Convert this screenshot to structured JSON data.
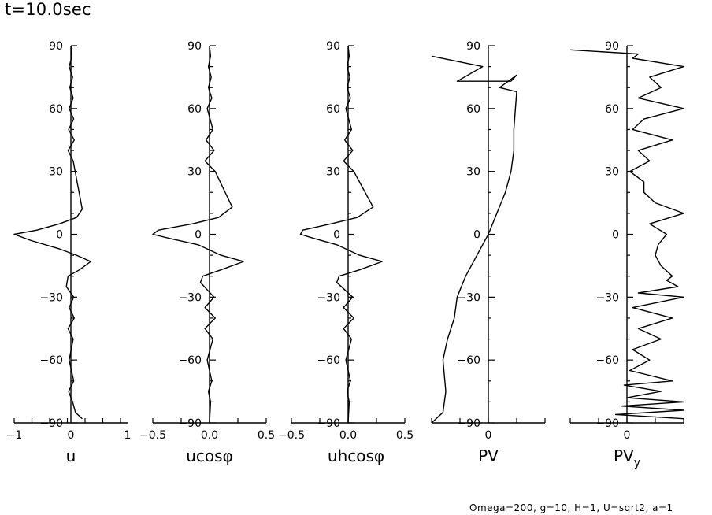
{
  "header": {
    "time": "t=10.0sec"
  },
  "footer": {
    "params": "Omega=200, g=10, H=1, U=sqrt2, a=1"
  },
  "chart_data": [
    {
      "type": "line",
      "xlabel": "u",
      "xlim": [
        -1,
        1
      ],
      "xticks": [
        "−1",
        "0",
        "1"
      ],
      "ylim": [
        -90,
        90
      ],
      "yticks": [
        "−90",
        "−60",
        "−30",
        "0",
        "30",
        "60",
        "90"
      ],
      "series": [
        {
          "x": [
            0.0,
            0.02,
            -0.03,
            0.03,
            -0.02,
            0.04,
            -0.03,
            0.05,
            -0.04,
            0.06,
            -0.05,
            0.04,
            0.2,
            0.1,
            -0.2,
            -0.6,
            -1.0,
            -0.7,
            -0.2,
            0.1,
            0.35,
            0.15,
            -0.05,
            -0.08,
            0.05,
            -0.03,
            0.06,
            -0.05,
            0.04,
            -0.03,
            0.05,
            -0.04,
            0.03,
            0.08,
            0.2
          ],
          "y": [
            90,
            85,
            80,
            75,
            70,
            65,
            60,
            55,
            50,
            45,
            40,
            35,
            12,
            8,
            5,
            2,
            0,
            -3,
            -7,
            -10,
            -13,
            -17,
            -20,
            -25,
            -30,
            -35,
            -40,
            -45,
            -50,
            -60,
            -70,
            -75,
            -80,
            -85,
            -88
          ]
        }
      ]
    },
    {
      "type": "line",
      "xlabel": "ucosφ",
      "xlim": [
        -0.5,
        0.5
      ],
      "xticks": [
        "−0.5",
        "0.0",
        "0.5"
      ],
      "ylim": [
        -90,
        90
      ],
      "yticks": [
        "−90",
        "−60",
        "−30",
        "0",
        "30",
        "60",
        "90"
      ],
      "series": [
        {
          "x": [
            0.0,
            0.01,
            -0.01,
            0.015,
            -0.01,
            0.02,
            -0.02,
            0.03,
            -0.03,
            0.04,
            -0.04,
            0.05,
            0.2,
            0.08,
            -0.15,
            -0.45,
            -0.5,
            -0.35,
            -0.1,
            0.1,
            0.3,
            0.1,
            -0.06,
            -0.08,
            0.04,
            -0.04,
            0.05,
            -0.04,
            0.03,
            -0.02,
            0.02,
            -0.01,
            0.01,
            0.0
          ],
          "y": [
            90,
            85,
            80,
            75,
            70,
            65,
            60,
            50,
            45,
            40,
            35,
            30,
            13,
            8,
            5,
            2,
            0,
            -2,
            -5,
            -10,
            -13,
            -17,
            -20,
            -23,
            -30,
            -35,
            -40,
            -45,
            -50,
            -60,
            -70,
            -75,
            -80,
            -90
          ]
        }
      ]
    },
    {
      "type": "line",
      "xlabel": "uhcosφ",
      "xlim": [
        -0.5,
        0.5
      ],
      "xticks": [
        "−0.5",
        "0.0",
        "0.5"
      ],
      "ylim": [
        -90,
        90
      ],
      "yticks": [
        "−90",
        "−60",
        "−30",
        "0",
        "30",
        "60",
        "90"
      ],
      "series": [
        {
          "x": [
            0.0,
            0.01,
            -0.01,
            0.015,
            -0.01,
            0.02,
            -0.02,
            0.03,
            -0.03,
            0.04,
            -0.04,
            0.05,
            0.22,
            0.08,
            -0.15,
            -0.4,
            -0.42,
            -0.3,
            -0.1,
            0.1,
            0.3,
            0.1,
            -0.08,
            -0.1,
            0.04,
            -0.04,
            0.05,
            -0.04,
            0.03,
            -0.02,
            0.02,
            -0.01,
            0.01,
            0.0
          ],
          "y": [
            90,
            85,
            80,
            75,
            70,
            65,
            60,
            50,
            45,
            40,
            35,
            30,
            13,
            8,
            5,
            2,
            0,
            -2,
            -5,
            -10,
            -13,
            -17,
            -20,
            -23,
            -30,
            -35,
            -40,
            -45,
            -50,
            -60,
            -70,
            -75,
            -80,
            -90
          ]
        }
      ]
    },
    {
      "type": "line",
      "xlabel": "PV",
      "ylim": [
        -90,
        90
      ],
      "xticks": [
        "0"
      ],
      "yticks": [
        "−90",
        "−60",
        "−30",
        "0",
        "30",
        "60",
        "90"
      ],
      "series": [
        {
          "x": [
            -100,
            -10,
            -55,
            40,
            50,
            20,
            50,
            45,
            45,
            40,
            30,
            15,
            0,
            -20,
            -40,
            -55,
            -60,
            -72,
            -80,
            -75,
            -80,
            -100
          ],
          "y": [
            85,
            80,
            73,
            73,
            76,
            70,
            68,
            50,
            40,
            30,
            20,
            10,
            0,
            -10,
            -20,
            -30,
            -40,
            -50,
            -60,
            -75,
            -85,
            -90
          ]
        }
      ]
    },
    {
      "type": "line",
      "xlabel": "PVy",
      "ylim": [
        -90,
        90
      ],
      "xticks": [
        "0"
      ],
      "yticks": [
        "−90",
        "−60",
        "−30",
        "0",
        "30",
        "60",
        "90"
      ],
      "series": [
        {
          "x": [
            -100,
            20,
            10,
            100,
            40,
            60,
            20,
            100,
            30,
            10,
            80,
            20,
            40,
            5,
            30,
            30,
            50,
            100,
            40,
            70,
            55,
            50,
            60,
            80,
            70,
            90,
            20,
            100,
            10,
            80,
            20,
            60,
            10,
            40,
            5,
            80,
            -5,
            60,
            0,
            100,
            -10,
            100,
            -20,
            100
          ],
          "y": [
            88,
            86,
            84,
            80,
            75,
            70,
            65,
            60,
            55,
            50,
            45,
            40,
            35,
            30,
            25,
            20,
            15,
            10,
            5,
            0,
            -5,
            -10,
            -15,
            -20,
            -22,
            -25,
            -28,
            -30,
            -35,
            -40,
            -45,
            -50,
            -55,
            -60,
            -65,
            -70,
            -72,
            -75,
            -78,
            -80,
            -82,
            -84,
            -86,
            -88
          ]
        }
      ]
    }
  ]
}
